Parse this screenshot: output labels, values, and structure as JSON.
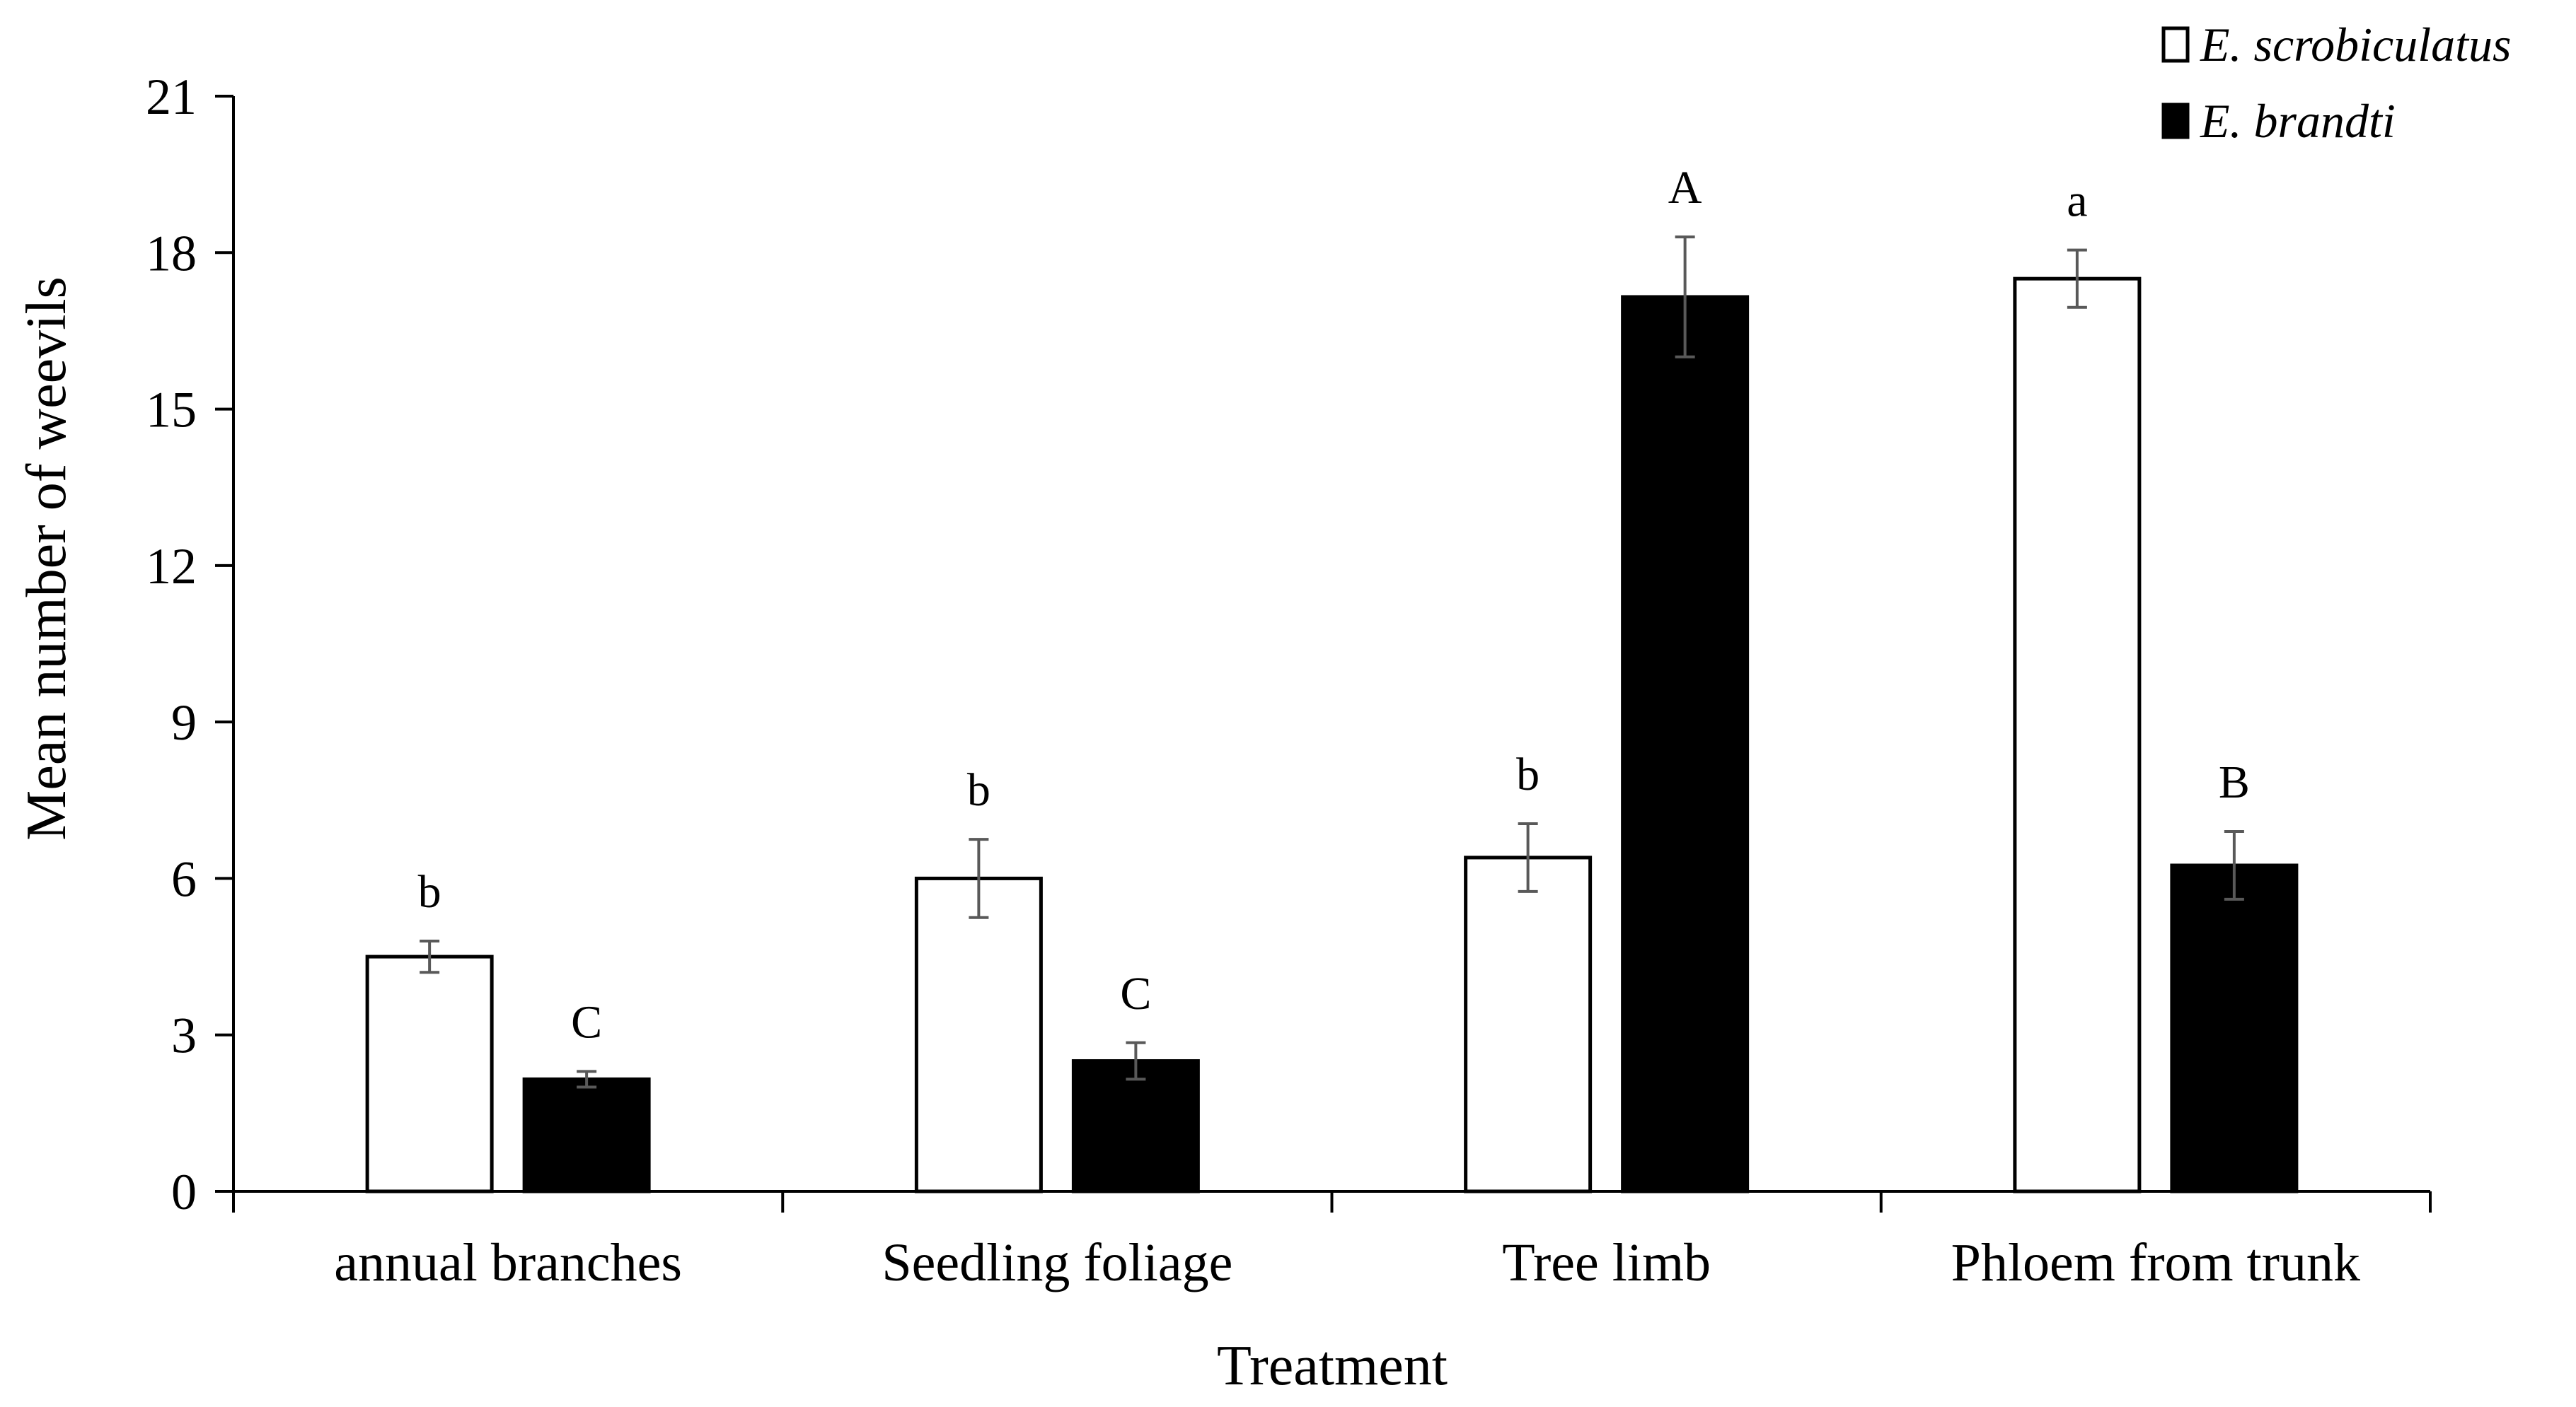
{
  "chart_data": {
    "type": "bar",
    "title": "",
    "xlabel": "Treatment",
    "ylabel": "Mean number of weevils",
    "ylim": [
      0,
      21
    ],
    "yticks": [
      0,
      3,
      6,
      9,
      12,
      15,
      18,
      21
    ],
    "grid": false,
    "legend_position": "top-right",
    "categories": [
      "annual branches",
      "Seedling foliage",
      "Tree limb",
      "Phloem from trunk"
    ],
    "series": [
      {
        "name": "E. scrobiculatus",
        "fill": "#ffffff",
        "values": [
          4.5,
          6.0,
          6.4,
          17.5
        ],
        "errors": [
          0.3,
          0.75,
          0.65,
          0.55
        ],
        "significance": [
          "b",
          "b",
          "b",
          "a"
        ]
      },
      {
        "name": "E. brandti",
        "fill": "#000000",
        "values": [
          2.15,
          2.5,
          17.15,
          6.25
        ],
        "errors": [
          0.15,
          0.35,
          1.15,
          0.65
        ],
        "significance": [
          "C",
          "C",
          "A",
          "B"
        ]
      }
    ],
    "colors": {
      "bar_stroke": "#000000",
      "error_bar": "#595959",
      "axis": "#000000"
    }
  }
}
